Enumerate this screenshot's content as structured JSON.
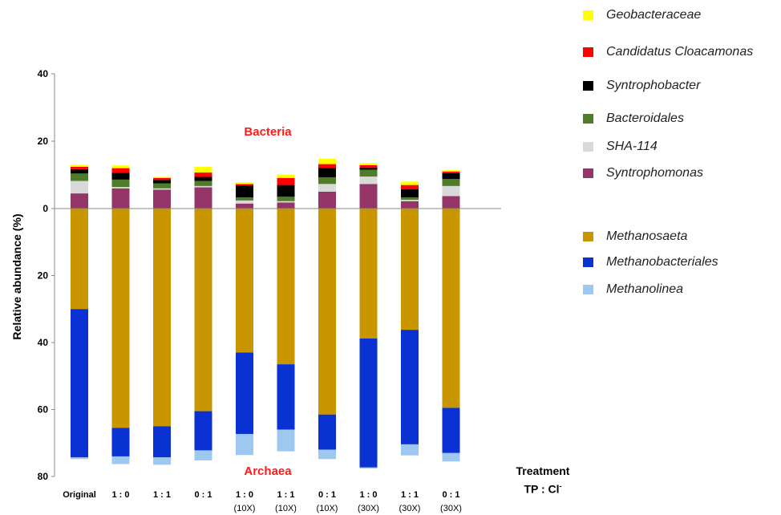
{
  "chart_data": {
    "type": "bar",
    "stacked": true,
    "diverging": true,
    "ylabel": "Relative abundance (%)",
    "ylim_upper": [
      0,
      40
    ],
    "ylim_lower": [
      0,
      80
    ],
    "yticks_upper": [
      40,
      20,
      0
    ],
    "yticks_lower": [
      20,
      40,
      60,
      80
    ],
    "annotations": {
      "upper": "Bacteria",
      "lower": "Archaea"
    },
    "treatment_title": "Treatment",
    "treatment_ratio": "TP : Cl",
    "treatment_ratio_sup": "-",
    "categories": [
      {
        "label": "Original",
        "sublabel": ""
      },
      {
        "label": "1 : 0",
        "sublabel": ""
      },
      {
        "label": "1 : 1",
        "sublabel": ""
      },
      {
        "label": "0 : 1",
        "sublabel": ""
      },
      {
        "label": "1 : 0",
        "sublabel": "(10X)"
      },
      {
        "label": "1 : 1",
        "sublabel": "(10X)"
      },
      {
        "label": "0 : 1",
        "sublabel": "(10X)"
      },
      {
        "label": "1 : 0",
        "sublabel": "(30X)"
      },
      {
        "label": "1 : 1",
        "sublabel": "(30X)"
      },
      {
        "label": "0 : 1",
        "sublabel": "(30X)"
      }
    ],
    "bacteria_series": [
      {
        "name": "Syntrophomonas",
        "color": "#953466",
        "values": [
          4.5,
          6.0,
          5.6,
          6.3,
          1.5,
          1.8,
          5.0,
          7.3,
          2.2,
          3.7
        ]
      },
      {
        "name": "SHA-114",
        "color": "#d9d9d9",
        "values": [
          3.7,
          0.4,
          0.4,
          0.4,
          0.9,
          0.4,
          2.3,
          2.2,
          0.4,
          3.0
        ]
      },
      {
        "name": "Bacteroidales",
        "color": "#4f7c2b",
        "values": [
          2.2,
          2.2,
          1.5,
          1.5,
          0.9,
          1.3,
          2.0,
          2.0,
          0.7,
          2.1
        ]
      },
      {
        "name": "Syntrophobacter",
        "color": "#000000",
        "values": [
          1.3,
          2.0,
          1.0,
          1.2,
          3.5,
          3.5,
          2.8,
          0.7,
          2.4,
          1.7
        ]
      },
      {
        "name": "Candidatus Cloacamonas",
        "color": "#ff0000",
        "values": [
          0.7,
          1.4,
          0.6,
          1.3,
          0.5,
          2.1,
          1.1,
          0.7,
          1.3,
          0.5
        ]
      },
      {
        "name": "Geobacteraceae",
        "color": "#ffff00",
        "values": [
          0.6,
          0.8,
          0.3,
          1.7,
          0.5,
          1.0,
          1.6,
          0.6,
          1.0,
          0.4
        ]
      }
    ],
    "archaea_series": [
      {
        "name": "Methanosaeta",
        "color": "#c99600",
        "values": [
          30.0,
          65.5,
          65.0,
          60.5,
          43.0,
          46.5,
          61.5,
          38.8,
          36.2,
          59.5
        ]
      },
      {
        "name": "Methanobacteriales",
        "color": "#0a31d2",
        "values": [
          44.3,
          8.5,
          9.3,
          11.7,
          24.3,
          19.5,
          10.5,
          38.5,
          34.2,
          13.5
        ]
      },
      {
        "name": "Methanolinea",
        "color": "#9ec8ef",
        "values": [
          0.5,
          2.3,
          2.2,
          3.0,
          6.3,
          6.5,
          2.8,
          0.3,
          3.3,
          2.5
        ]
      }
    ],
    "legend": {
      "placement": "right",
      "bacteria": [
        "Geobacteraceae",
        "Candidatus Cloacamonas",
        "Syntrophobacter",
        "Bacteroidales",
        "SHA-114",
        "Syntrophomonas"
      ],
      "archaea": [
        "Methanosaeta",
        "Methanobacteriales",
        "Methanolinea"
      ]
    },
    "grid": false
  }
}
